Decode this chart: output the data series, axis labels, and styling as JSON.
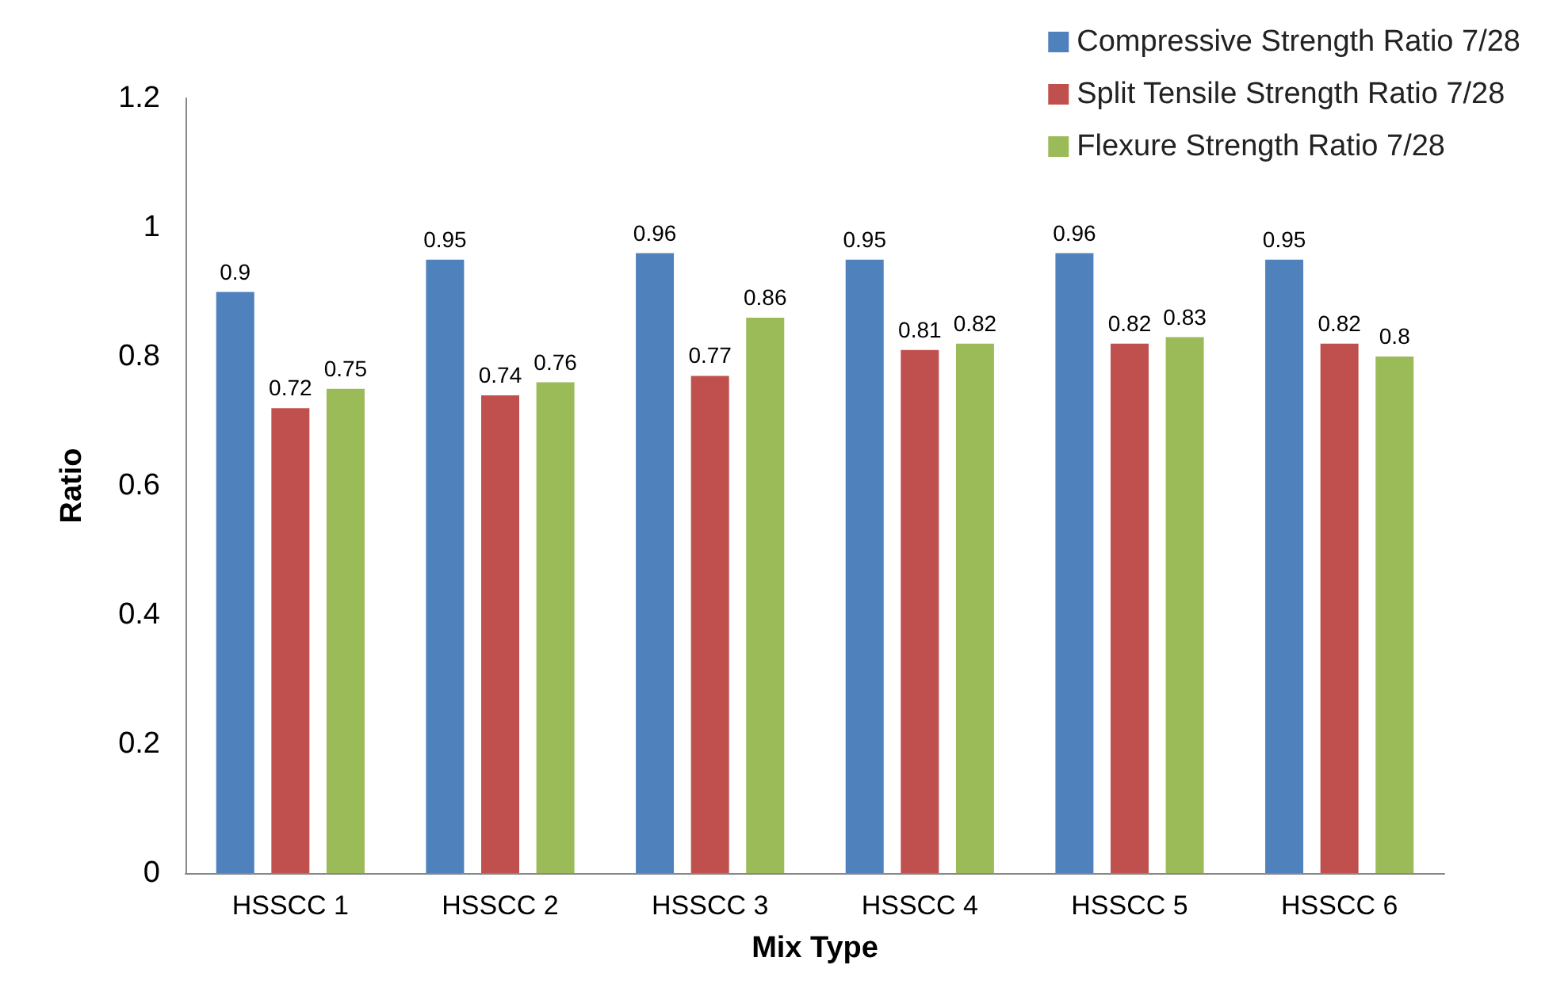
{
  "chart_data": {
    "type": "bar",
    "xlabel": "Mix Type",
    "ylabel": "Ratio",
    "categories": [
      "HSSCC 1",
      "HSSCC 2",
      "HSSCC 3",
      "HSSCC 4",
      "HSSCC 5",
      "HSSCC 6"
    ],
    "series": [
      {
        "name": "Compressive Strength Ratio 7/28",
        "color": "#4f81bd",
        "values": [
          0.9,
          0.95,
          0.96,
          0.95,
          0.96,
          0.95
        ]
      },
      {
        "name": "Split Tensile Strength Ratio 7/28",
        "color": "#c0504d",
        "values": [
          0.72,
          0.74,
          0.77,
          0.81,
          0.82,
          0.82
        ]
      },
      {
        "name": "Flexure Strength Ratio 7/28",
        "color": "#9bbb59",
        "values": [
          0.75,
          0.76,
          0.86,
          0.82,
          0.83,
          0.8
        ]
      }
    ],
    "ylim": [
      0,
      1.2
    ],
    "yticks": [
      0,
      0.2,
      0.4,
      0.6,
      0.8,
      1,
      1.2
    ],
    "grid": false,
    "legend": "top right",
    "data_labels": true
  }
}
